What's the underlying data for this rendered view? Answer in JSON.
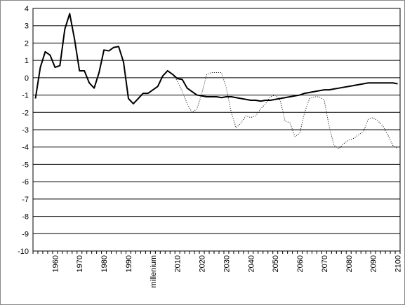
{
  "chart_data": {
    "type": "line",
    "categories": [
      null,
      null,
      null,
      null,
      "1960",
      null,
      null,
      null,
      null,
      "1970",
      null,
      null,
      null,
      null,
      "1980",
      null,
      null,
      null,
      null,
      "1990",
      null,
      null,
      null,
      null,
      "millenium",
      null,
      null,
      null,
      null,
      "2010",
      null,
      null,
      null,
      null,
      "2020",
      null,
      null,
      null,
      null,
      "2030",
      null,
      null,
      null,
      null,
      "2040",
      null,
      null,
      null,
      null,
      "2050",
      null,
      null,
      null,
      null,
      "2060",
      null,
      null,
      null,
      null,
      "2070",
      null,
      null,
      null,
      null,
      "2080",
      null,
      null,
      null,
      null,
      "2090",
      null,
      null,
      null,
      null,
      "2100"
    ],
    "series": [
      {
        "color": "#000000",
        "style": "solid",
        "values": [
          -1.2,
          0.6,
          1.5,
          1.3,
          0.6,
          0.7,
          2.8,
          3.7,
          2.2,
          0.4,
          0.4,
          -0.3,
          -0.6,
          0.3,
          1.6,
          1.55,
          1.75,
          1.8,
          0.9,
          -1.2,
          -1.5,
          -1.2,
          -0.9,
          -0.9,
          -0.7,
          -0.5,
          0.1,
          0.4,
          0.2,
          -0.05,
          -0.1,
          -0.6,
          -0.8,
          -1.0,
          -1.05,
          -1.1,
          -1.1,
          -1.1,
          -1.15,
          -1.1,
          -1.1,
          -1.15,
          -1.2,
          -1.25,
          -1.3,
          -1.3,
          -1.35,
          -1.3,
          -1.3,
          -1.25,
          -1.2,
          -1.15,
          -1.1,
          -1.05,
          -1.0,
          -0.9,
          -0.85,
          -0.8,
          -0.75,
          -0.7,
          -0.7,
          -0.65,
          -0.6,
          -0.55,
          -0.5,
          -0.45,
          -0.4,
          -0.35,
          -0.3,
          -0.3,
          -0.3,
          -0.3,
          -0.3,
          -0.3,
          -0.35
        ]
      },
      {
        "color": "#000000",
        "style": "dotted",
        "values": [
          null,
          null,
          null,
          null,
          null,
          null,
          null,
          null,
          null,
          null,
          null,
          null,
          null,
          null,
          null,
          null,
          null,
          null,
          null,
          null,
          null,
          null,
          null,
          null,
          null,
          null,
          null,
          null,
          0.2,
          -0.2,
          -0.8,
          -1.5,
          -2.0,
          -1.8,
          -0.9,
          0.2,
          0.3,
          0.3,
          0.3,
          -0.6,
          -2.0,
          -2.9,
          -2.6,
          -2.2,
          -2.3,
          -2.2,
          -1.8,
          -1.5,
          -1.1,
          -1.0,
          -1.3,
          -2.5,
          -2.6,
          -3.4,
          -3.2,
          -2.0,
          -1.2,
          -1.1,
          -1.1,
          -1.3,
          -2.8,
          -3.9,
          -4.1,
          -3.8,
          -3.6,
          -3.5,
          -3.3,
          -3.1,
          -2.4,
          -2.3,
          -2.5,
          -2.8,
          -3.3,
          -3.9,
          -4.1
        ]
      }
    ],
    "ylim": [
      -10,
      4
    ],
    "yticks": [
      -10,
      -9,
      -8,
      -7,
      -6,
      -5,
      -4,
      -3,
      -2,
      -1,
      0,
      1,
      2,
      3,
      4
    ],
    "grid": true
  }
}
